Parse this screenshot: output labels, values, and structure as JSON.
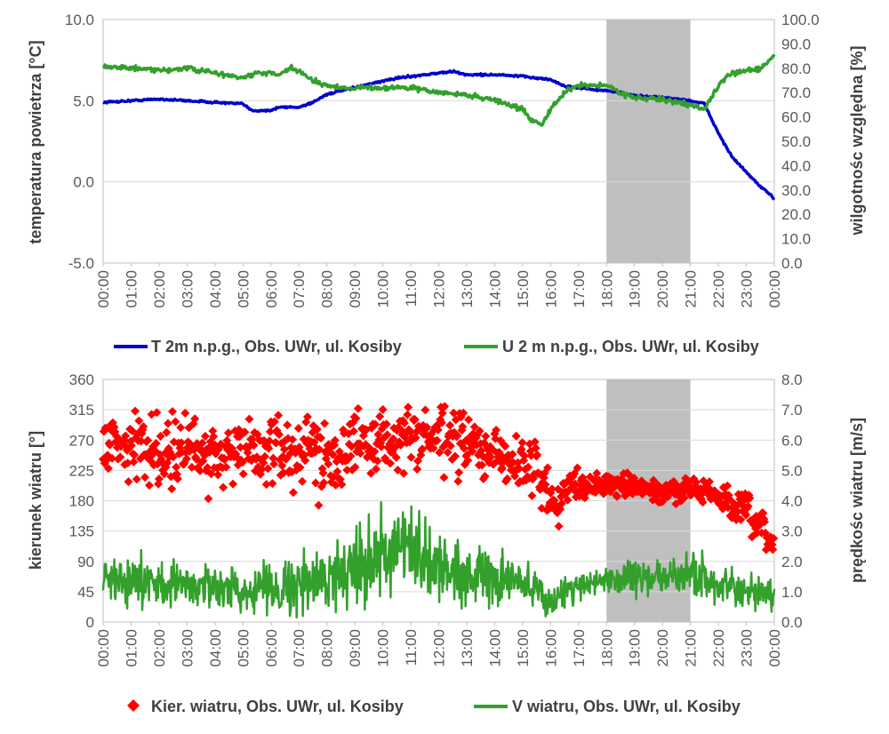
{
  "chart_data": [
    {
      "type": "line",
      "xlabel": "",
      "x_ticks": [
        "00:00",
        "01:00",
        "02:00",
        "03:00",
        "04:00",
        "05:00",
        "06:00",
        "07:00",
        "08:00",
        "09:00",
        "10:00",
        "11:00",
        "12:00",
        "13:00",
        "14:00",
        "15:00",
        "16:00",
        "17:00",
        "18:00",
        "19:00",
        "20:00",
        "21:00",
        "22:00",
        "23:00",
        "00:00"
      ],
      "ylabel": "temperatura powietrza [°C]",
      "ylim": [
        -5,
        10
      ],
      "y_ticks": [
        "10.0",
        "5.0",
        "0.0",
        "-5.0"
      ],
      "y2label": "wilgotnośc względna [%]",
      "y2lim": [
        0,
        100
      ],
      "y2_ticks": [
        "100.0",
        "90.0",
        "80.0",
        "70.0",
        "60.0",
        "50.0",
        "40.0",
        "30.0",
        "20.0",
        "10.0",
        "0.0"
      ],
      "shaded_interval_hours": [
        18,
        21
      ],
      "shaded_color": "#bfbfbf",
      "series": [
        {
          "name": "T 2m n.p.g., Obs. UWr, ul. Kosiby",
          "axis": "left",
          "color": "#0000cc",
          "hours": [
            0,
            1,
            2,
            3,
            4,
            5,
            5.3,
            6,
            6.3,
            7,
            7.5,
            8,
            9,
            9.5,
            10,
            10.5,
            11,
            11.5,
            12,
            12.5,
            13,
            14,
            15,
            16,
            16.5,
            17,
            18,
            18.5,
            19,
            20,
            21,
            21.5,
            22,
            22.5,
            23,
            23.5,
            24
          ],
          "values": [
            4.9,
            5.0,
            5.1,
            5.0,
            4.9,
            4.8,
            4.4,
            4.4,
            4.6,
            4.6,
            4.9,
            5.4,
            5.8,
            6.0,
            6.2,
            6.4,
            6.5,
            6.6,
            6.7,
            6.8,
            6.6,
            6.6,
            6.5,
            6.3,
            5.9,
            5.8,
            5.6,
            5.5,
            5.3,
            5.2,
            5.0,
            4.8,
            3.0,
            1.5,
            0.6,
            -0.3,
            -1.0
          ]
        },
        {
          "name": "U 2 m n.p.g., Obs. UWr, ul. Kosiby",
          "axis": "right",
          "color": "#33a02c",
          "hours": [
            0,
            1,
            2,
            3,
            4,
            5,
            5.5,
            6,
            6.3,
            6.7,
            7,
            7.3,
            8,
            8.5,
            9,
            10,
            11,
            12,
            13,
            14,
            15,
            15.3,
            15.7,
            16,
            16.5,
            17,
            18,
            18.5,
            19,
            20,
            21,
            21.5,
            22,
            22.5,
            23,
            23.5,
            24
          ],
          "values": [
            81,
            80,
            79,
            80,
            78,
            76,
            78,
            78,
            77,
            80,
            79,
            76,
            73,
            72,
            72,
            72,
            72,
            70,
            69,
            67,
            63,
            59,
            57,
            63,
            70,
            73,
            73,
            70,
            68,
            67,
            65,
            63,
            73,
            78,
            79,
            80,
            85
          ]
        }
      ],
      "legend_position": "bottom"
    },
    {
      "type": "scatter",
      "xlabel": "",
      "x_ticks": [
        "00:00",
        "01:00",
        "02:00",
        "03:00",
        "04:00",
        "05:00",
        "06:00",
        "07:00",
        "08:00",
        "09:00",
        "10:00",
        "11:00",
        "12:00",
        "13:00",
        "14:00",
        "15:00",
        "16:00",
        "17:00",
        "18:00",
        "19:00",
        "20:00",
        "21:00",
        "22:00",
        "23:00",
        "00:00"
      ],
      "ylabel": "kierunek wiatru [°]",
      "ylim": [
        0,
        360
      ],
      "y_ticks": [
        "360",
        "315",
        "270",
        "225",
        "180",
        "135",
        "90",
        "45",
        "0"
      ],
      "y2label": "prędkośc wiatru [m/s]",
      "y2lim": [
        0,
        8
      ],
      "y2_ticks": [
        "8.0",
        "7.0",
        "6.0",
        "5.0",
        "4.0",
        "3.0",
        "2.0",
        "1.0",
        "0.0"
      ],
      "shaded_interval_hours": [
        18,
        21
      ],
      "shaded_color": "#bfbfbf",
      "series": [
        {
          "name": "Kier. wiatru, Obs. UWr, ul. Kosiby",
          "axis": "left",
          "marker": "diamond",
          "color": "#ff0000",
          "hours": [
            0,
            2,
            4,
            6,
            8,
            10,
            11.5,
            13,
            14,
            15,
            15.7,
            16,
            16.5,
            17,
            18,
            19,
            20,
            21,
            22,
            23,
            24
          ],
          "mean_values": [
            270,
            255,
            250,
            255,
            250,
            270,
            275,
            265,
            245,
            235,
            220,
            170,
            195,
            205,
            205,
            200,
            190,
            200,
            185,
            160,
            115
          ],
          "spread": [
            40,
            45,
            45,
            45,
            50,
            40,
            40,
            40,
            35,
            35,
            40,
            35,
            20,
            18,
            15,
            15,
            15,
            15,
            20,
            25,
            20
          ]
        },
        {
          "name": "V wiatru, Obs. UWr, ul. Kosiby",
          "axis": "right",
          "color": "#33a02c",
          "hours": [
            0,
            1,
            2,
            3,
            4,
            5,
            6,
            7,
            8,
            9,
            10,
            11,
            12,
            13,
            14,
            15,
            15.5,
            16,
            16.5,
            17,
            18,
            19,
            20,
            21,
            21.5,
            22,
            23,
            24
          ],
          "mean_values": [
            1.5,
            1.3,
            1.3,
            1.2,
            1.2,
            1.0,
            1.2,
            1.2,
            1.4,
            2.0,
            2.2,
            2.3,
            1.8,
            1.6,
            1.4,
            1.3,
            1.1,
            0.6,
            1.0,
            1.2,
            1.4,
            1.5,
            1.4,
            1.6,
            1.5,
            1.2,
            0.9,
            1.0
          ],
          "spread": [
            0.8,
            0.7,
            0.7,
            0.6,
            0.6,
            0.5,
            0.8,
            0.8,
            0.9,
            1.2,
            1.3,
            1.3,
            1.0,
            0.8,
            0.7,
            0.7,
            0.6,
            0.4,
            0.5,
            0.4,
            0.4,
            0.5,
            0.5,
            0.6,
            0.6,
            0.5,
            0.5,
            0.5
          ]
        }
      ],
      "legend_position": "bottom"
    }
  ]
}
